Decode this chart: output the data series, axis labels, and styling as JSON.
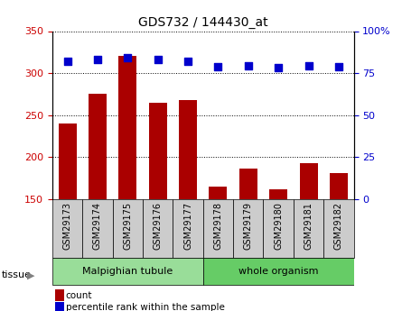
{
  "title": "GDS732 / 144430_at",
  "categories": [
    "GSM29173",
    "GSM29174",
    "GSM29175",
    "GSM29176",
    "GSM29177",
    "GSM29178",
    "GSM29179",
    "GSM29180",
    "GSM29181",
    "GSM29182"
  ],
  "counts": [
    240,
    275,
    320,
    265,
    268,
    165,
    186,
    161,
    193,
    181
  ],
  "percentile_ranks": [
    82,
    83,
    84,
    83,
    82,
    79,
    79.5,
    78.5,
    79.5,
    79
  ],
  "ylim_left": [
    150,
    350
  ],
  "ylim_right": [
    0,
    100
  ],
  "yticks_left": [
    150,
    200,
    250,
    300,
    350
  ],
  "yticks_right": [
    0,
    25,
    50,
    75,
    100
  ],
  "ytick_right_labels": [
    "0",
    "25",
    "50",
    "75",
    "100%"
  ],
  "bar_color": "#aa0000",
  "scatter_color": "#0000cc",
  "grid_color": "#000000",
  "bg_plot": "#ffffff",
  "xticklabel_bg": "#cccccc",
  "tissue_groups": [
    {
      "label": "Malpighian tubule",
      "indices": [
        0,
        1,
        2,
        3,
        4
      ],
      "color": "#99dd99"
    },
    {
      "label": "whole organism",
      "indices": [
        5,
        6,
        7,
        8,
        9
      ],
      "color": "#66cc66"
    }
  ],
  "ylabel_left_color": "#cc0000",
  "ylabel_right_color": "#0000cc",
  "legend_items": [
    {
      "label": "count",
      "color": "#aa0000"
    },
    {
      "label": "percentile rank within the sample",
      "color": "#0000cc"
    }
  ],
  "tissue_label": "tissue",
  "bar_width": 0.6,
  "scatter_size": 35,
  "title_fontsize": 10,
  "axis_fontsize": 8,
  "xtick_fontsize": 7,
  "legend_fontsize": 7.5
}
